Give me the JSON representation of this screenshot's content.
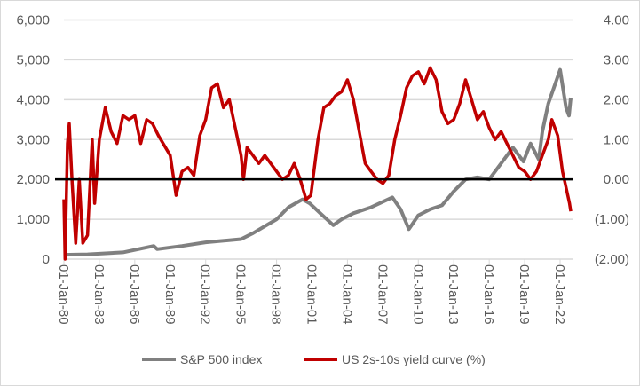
{
  "chart_data": {
    "type": "line",
    "title": "",
    "xlabel": "",
    "ylabel_left": "",
    "ylabel_right": "",
    "x_tick_labels": [
      "01-Jan-80",
      "01-Jan-83",
      "01-Jan-86",
      "01-Jan-89",
      "01-Jan-92",
      "01-Jan-95",
      "01-Jan-98",
      "01-Jan-01",
      "01-Jan-04",
      "01-Jan-07",
      "01-Jan-10",
      "01-Jan-13",
      "01-Jan-16",
      "01-Jan-19",
      "01-Jan-22"
    ],
    "left_axis": {
      "range": [
        0,
        6000
      ],
      "tick_labels": [
        "0",
        "1,000",
        "2,000",
        "3,000",
        "4,000",
        "5,000",
        "6,000"
      ],
      "ticks": [
        0,
        1000,
        2000,
        3000,
        4000,
        5000,
        6000
      ]
    },
    "right_axis": {
      "range": [
        -2,
        4
      ],
      "tick_labels": [
        "(2.00)",
        "(1.00)",
        "0.00",
        "1.00",
        "2.00",
        "3.00",
        "4.00"
      ],
      "ticks": [
        -2,
        -1,
        0,
        1,
        2,
        3,
        4
      ]
    },
    "grid": true,
    "reference_line": {
      "axis": "right",
      "value": 0,
      "color": "#000000"
    },
    "legend": "bottom",
    "series": [
      {
        "name": "S&P 500 index",
        "axis": "left",
        "color": "#808080",
        "x": [
          1980,
          1982,
          1985,
          1987.6,
          1987.9,
          1990,
          1992,
          1995,
          1996,
          1998,
          1999,
          2000.2,
          2000.8,
          2001.7,
          2002.8,
          2003.5,
          2004.5,
          2006,
          2007.8,
          2008.5,
          2009.2,
          2010,
          2011,
          2012,
          2013,
          2014,
          2015,
          2016,
          2017,
          2018,
          2018.9,
          2019.5,
          2020.2,
          2020.5,
          2021,
          2022,
          2022.5,
          2022.75,
          2022.9
        ],
        "values": [
          108,
          120,
          170,
          330,
          250,
          330,
          420,
          500,
          650,
          1000,
          1300,
          1500,
          1400,
          1150,
          850,
          1000,
          1150,
          1300,
          1550,
          1250,
          750,
          1100,
          1250,
          1350,
          1700,
          2000,
          2050,
          2000,
          2400,
          2800,
          2450,
          2900,
          2500,
          3200,
          3900,
          4750,
          3800,
          3600,
          4050
        ]
      },
      {
        "name": "US 2s-10s yield curve (%)",
        "axis": "right",
        "color": "#c00000",
        "x": [
          1980,
          1980.1,
          1980.3,
          1980.45,
          1980.7,
          1981,
          1981.3,
          1981.6,
          1982,
          1982.4,
          1982.6,
          1983,
          1983.5,
          1984,
          1984.5,
          1985,
          1985.5,
          1986,
          1986.5,
          1987,
          1987.5,
          1988,
          1989,
          1989.5,
          1990,
          1990.5,
          1991,
          1991.5,
          1992,
          1992.5,
          1993,
          1993.5,
          1994,
          1994.5,
          1995,
          1995.2,
          1995.5,
          1996,
          1996.5,
          1997,
          1998,
          1998.5,
          1999,
          1999.5,
          2000,
          2000.5,
          2000.9,
          2001.5,
          2002,
          2002.5,
          2003,
          2003.5,
          2004,
          2004.5,
          2005,
          2005.5,
          2006,
          2006.5,
          2007,
          2007.5,
          2008,
          2008.5,
          2009,
          2009.5,
          2010,
          2010.5,
          2011,
          2011.5,
          2012,
          2012.5,
          2013,
          2013.5,
          2014,
          2014.5,
          2015,
          2015.5,
          2016,
          2016.5,
          2017,
          2017.5,
          2018,
          2018.5,
          2019,
          2019.5,
          2020,
          2020.5,
          2021,
          2021.3,
          2021.8,
          2022.2,
          2022.5,
          2022.8,
          2022.9
        ],
        "values": [
          -0.5,
          -2.0,
          0.9,
          1.4,
          -0.1,
          -1.6,
          0.0,
          -1.6,
          -1.4,
          1.0,
          -0.6,
          1.0,
          1.8,
          1.2,
          0.9,
          1.6,
          1.5,
          1.6,
          0.9,
          1.5,
          1.4,
          1.1,
          0.6,
          -0.4,
          0.2,
          0.3,
          0.1,
          1.1,
          1.5,
          2.3,
          2.4,
          1.8,
          2.0,
          1.3,
          0.6,
          0.0,
          0.8,
          0.6,
          0.4,
          0.6,
          0.2,
          0.0,
          0.1,
          0.4,
          0.0,
          -0.5,
          -0.4,
          1.0,
          1.8,
          1.9,
          2.1,
          2.2,
          2.5,
          2.0,
          1.2,
          0.4,
          0.2,
          0.0,
          -0.1,
          0.1,
          1.0,
          1.6,
          2.3,
          2.6,
          2.7,
          2.4,
          2.8,
          2.5,
          1.7,
          1.4,
          1.5,
          1.9,
          2.5,
          2.0,
          1.5,
          1.7,
          1.3,
          1.0,
          1.2,
          0.9,
          0.6,
          0.3,
          0.2,
          0.0,
          0.2,
          0.6,
          1.0,
          1.5,
          1.1,
          0.2,
          -0.2,
          -0.6,
          -0.8
        ]
      }
    ]
  }
}
